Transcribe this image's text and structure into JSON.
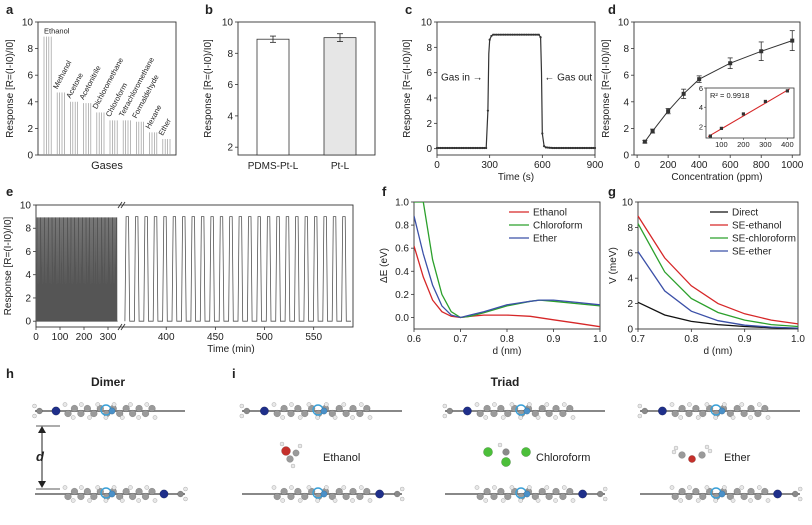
{
  "panel_letters": [
    "a",
    "b",
    "c",
    "d",
    "e",
    "f",
    "g",
    "h",
    "i"
  ],
  "chart_data": [
    {
      "id": "a",
      "type": "bar",
      "ylabel": "Response [R=(I-I0)/I0]",
      "xlabel": "Gases",
      "ylim": [
        0,
        10
      ],
      "yticks": [
        0,
        2,
        4,
        6,
        8,
        10
      ],
      "categories": [
        "Ethanol",
        "Methanol",
        "Acetone",
        "Acetonitrile",
        "Dichloromethane",
        "Chloroform",
        "Tetrachloromethane",
        "Formaldehyde",
        "Hexane",
        "Ether"
      ],
      "values": [
        8.9,
        4.7,
        4.0,
        3.9,
        3.2,
        2.6,
        2.6,
        2.5,
        1.7,
        1.2
      ]
    },
    {
      "id": "b",
      "type": "bar",
      "ylabel": "Response [R=(I-I0)/I0]",
      "ylim": [
        1.5,
        10
      ],
      "yticks": [
        2,
        4,
        6,
        8,
        10
      ],
      "categories": [
        "PDMS-Pt-L",
        "Pt-L"
      ],
      "values": [
        8.9,
        9.0
      ],
      "errors": [
        0.2,
        0.25
      ],
      "colors": [
        "#ffffff",
        "#e6e6e6"
      ]
    },
    {
      "id": "c",
      "type": "line",
      "ylabel": "Response [R=(I-I0)/I0]",
      "xlabel": "Time (s)",
      "xlim": [
        0,
        900
      ],
      "ylim": [
        -0.5,
        10
      ],
      "xticks": [
        0,
        300,
        600,
        900
      ],
      "yticks": [
        0,
        2,
        4,
        6,
        8,
        10
      ],
      "annotations": [
        "Gas in",
        "Gas out"
      ],
      "x": [
        0,
        60,
        120,
        180,
        240,
        280,
        290,
        295,
        300,
        310,
        320,
        360,
        420,
        480,
        540,
        580,
        590,
        595,
        600,
        610,
        620,
        660,
        720,
        780,
        840,
        900
      ],
      "y": [
        0.05,
        0.05,
        0.05,
        0.05,
        0.05,
        0.05,
        3.0,
        7.5,
        8.6,
        8.9,
        9.0,
        9.0,
        9.0,
        9.0,
        9.0,
        9.0,
        8.8,
        6.0,
        1.2,
        0.2,
        0.1,
        0.05,
        0.05,
        0.05,
        0.05,
        0.05
      ]
    },
    {
      "id": "d",
      "type": "scatter",
      "ylabel": "Response [R=(I-I0)/I0]",
      "xlabel": "Concentration (ppm)",
      "xlim": [
        -20,
        1050
      ],
      "ylim": [
        0,
        10
      ],
      "xticks": [
        0,
        200,
        400,
        600,
        800,
        1000
      ],
      "yticks": [
        0,
        2,
        4,
        6,
        8,
        10
      ],
      "x": [
        50,
        100,
        200,
        300,
        400,
        600,
        800,
        1000
      ],
      "y": [
        1.0,
        1.8,
        3.3,
        4.6,
        5.7,
        6.9,
        7.8,
        8.6
      ],
      "errors": [
        0.1,
        0.15,
        0.2,
        0.35,
        0.25,
        0.4,
        0.7,
        0.75
      ],
      "inset": {
        "type": "scatter",
        "label": "R² = 0.9918",
        "xlim": [
          30,
          430
        ],
        "ylim": [
          0.8,
          6
        ],
        "xticks": [
          100,
          200,
          300,
          400
        ],
        "yticks": [
          2,
          4,
          6
        ],
        "x": [
          50,
          100,
          200,
          300,
          400
        ],
        "y": [
          1.0,
          1.8,
          3.3,
          4.6,
          5.7
        ],
        "fit": [
          [
            40,
            0.95
          ],
          [
            410,
            5.9
          ]
        ]
      }
    },
    {
      "id": "e",
      "type": "line",
      "ylabel": "Response [R=(I-I0)/I0]",
      "xlabel": "Time (min)",
      "ylim": [
        -0.5,
        10
      ],
      "yticks": [
        0,
        2,
        4,
        6,
        8,
        10
      ],
      "xticks_left": [
        0,
        100,
        200,
        300
      ],
      "xticks_right": [
        400,
        450,
        500,
        550
      ],
      "segments": [
        {
          "xlim": [
            0,
            350
          ],
          "start": 0,
          "end": 340,
          "cycles": 60,
          "amplitude": 8.9
        },
        {
          "xlim": [
            355,
            590
          ],
          "start": 358,
          "end": 588,
          "cycles": 24,
          "amplitude": 9.0
        }
      ]
    },
    {
      "id": "f",
      "type": "line",
      "ylabel": "ΔE (eV)",
      "xlabel": "d (nm)",
      "xlim": [
        0.6,
        1.0
      ],
      "ylim": [
        -0.1,
        1.0
      ],
      "xticks": [
        0.6,
        0.7,
        0.8,
        0.9,
        1.0
      ],
      "yticks": [
        0.0,
        0.2,
        0.4,
        0.6,
        0.8,
        1.0
      ],
      "series": [
        {
          "name": "Ethanol",
          "color": "#d62728",
          "x": [
            0.6,
            0.62,
            0.64,
            0.66,
            0.68,
            0.7,
            0.72,
            0.75,
            0.8,
            0.85,
            0.9,
            0.95,
            1.0
          ],
          "y": [
            0.62,
            0.35,
            0.15,
            0.05,
            0.01,
            0.0,
            0.01,
            0.02,
            0.02,
            0.01,
            -0.02,
            -0.05,
            -0.08
          ]
        },
        {
          "name": "Chloroform",
          "color": "#2ca02c",
          "x": [
            0.6,
            0.62,
            0.64,
            0.66,
            0.68,
            0.7,
            0.72,
            0.75,
            0.8,
            0.85,
            0.87,
            0.9,
            0.95,
            1.0
          ],
          "y": [
            1.0,
            1.0,
            0.5,
            0.2,
            0.05,
            0.0,
            0.01,
            0.04,
            0.1,
            0.14,
            0.15,
            0.14,
            0.12,
            0.1
          ]
        },
        {
          "name": "Ether",
          "color": "#3b50a8",
          "x": [
            0.6,
            0.62,
            0.64,
            0.66,
            0.68,
            0.7,
            0.72,
            0.75,
            0.8,
            0.85,
            0.87,
            0.9,
            0.95,
            1.0
          ],
          "y": [
            0.88,
            0.55,
            0.28,
            0.1,
            0.02,
            0.0,
            0.02,
            0.05,
            0.11,
            0.14,
            0.15,
            0.15,
            0.13,
            0.11
          ]
        }
      ]
    },
    {
      "id": "g",
      "type": "line",
      "ylabel": "V (meV)",
      "xlabel": "d (nm)",
      "xlim": [
        0.7,
        1.0
      ],
      "ylim": [
        0,
        10
      ],
      "xticks": [
        0.7,
        0.8,
        0.9,
        1.0
      ],
      "yticks": [
        0,
        2,
        4,
        6,
        8,
        10
      ],
      "series": [
        {
          "name": "Direct",
          "color": "#111111",
          "x": [
            0.7,
            0.75,
            0.8,
            0.85,
            0.9,
            0.95,
            1.0
          ],
          "y": [
            2.1,
            1.1,
            0.6,
            0.35,
            0.2,
            0.1,
            0.05
          ]
        },
        {
          "name": "SE-ethanol",
          "color": "#d62728",
          "x": [
            0.7,
            0.75,
            0.8,
            0.85,
            0.9,
            0.95,
            1.0
          ],
          "y": [
            8.9,
            5.6,
            3.4,
            2.0,
            1.2,
            0.7,
            0.4
          ]
        },
        {
          "name": "SE-chloroform",
          "color": "#2ca02c",
          "x": [
            0.7,
            0.75,
            0.8,
            0.85,
            0.9,
            0.95,
            1.0
          ],
          "y": [
            8.3,
            4.5,
            2.4,
            1.3,
            0.7,
            0.35,
            0.2
          ]
        },
        {
          "name": "SE-ether",
          "color": "#3b50a8",
          "x": [
            0.7,
            0.75,
            0.8,
            0.85,
            0.9,
            0.95,
            1.0
          ],
          "y": [
            6.1,
            3.0,
            1.4,
            0.65,
            0.3,
            0.15,
            0.07
          ]
        }
      ]
    }
  ],
  "molecules": {
    "h_title": "Dimer",
    "h_axis_label": "d",
    "i_title": "Triad",
    "i_labels": [
      "Ethanol",
      "Chloroform",
      "Ether"
    ]
  }
}
